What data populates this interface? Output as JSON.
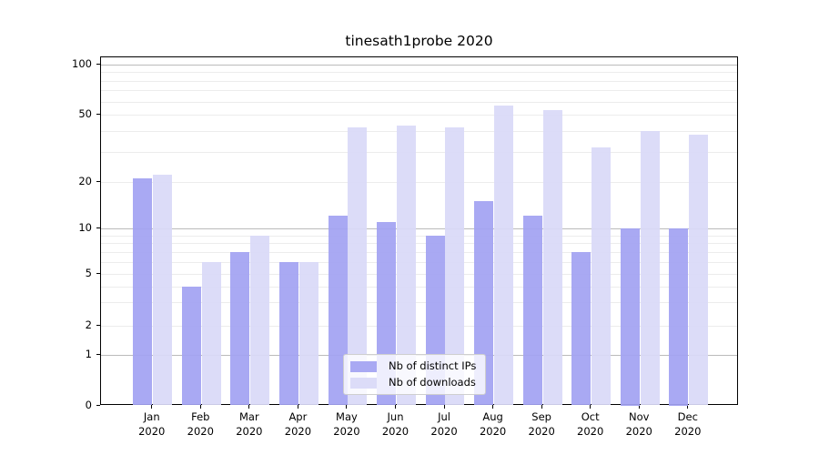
{
  "chart_data": {
    "type": "bar",
    "title": "tinesath1probe 2020",
    "categories": [
      "Jan",
      "Feb",
      "Mar",
      "Apr",
      "May",
      "Jun",
      "Jul",
      "Aug",
      "Sep",
      "Oct",
      "Nov",
      "Dec"
    ],
    "x_year": "2020",
    "series": [
      {
        "name": "Nb of distinct IPs",
        "values": [
          21,
          4,
          7,
          6,
          12,
          11,
          9,
          15,
          12,
          7,
          10,
          10
        ],
        "color": "#a2a2f2"
      },
      {
        "name": "Nb of downloads",
        "values": [
          22,
          6,
          9,
          6,
          42,
          43,
          42,
          57,
          53,
          32,
          40,
          38
        ],
        "color": "#d9d9f8"
      }
    ],
    "yscale": "symlog",
    "yticks": [
      0,
      1,
      2,
      5,
      10,
      20,
      50,
      100
    ],
    "minor_yticks": [
      2,
      3,
      4,
      5,
      6,
      7,
      8,
      9,
      20,
      30,
      40,
      50,
      60,
      70,
      80,
      90
    ],
    "major_gridlines": [
      1,
      10,
      100
    ],
    "ylim": [
      0,
      110
    ],
    "grid": "horizontal",
    "legend_position": "lower center"
  },
  "colors": {
    "ips_bar": "#a2a2f2",
    "downloads_bar": "#d9d9f8",
    "major_grid": "#bbbbbb",
    "minor_grid": "#ececec",
    "axis": "#000000"
  }
}
